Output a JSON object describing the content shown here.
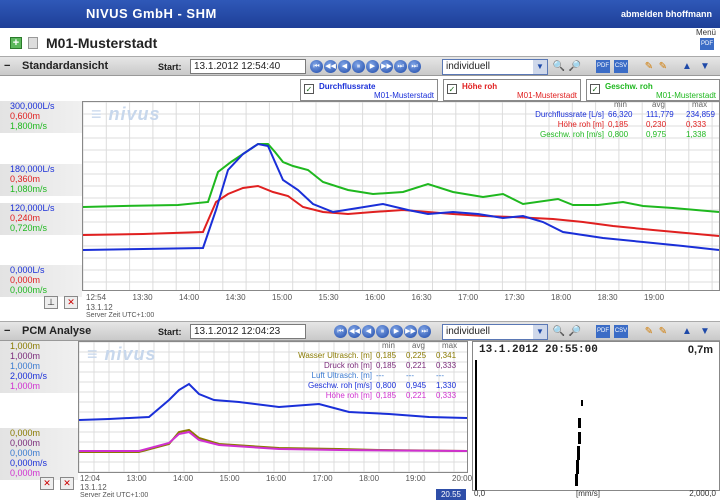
{
  "header": {
    "brand": "NIVUS GmbH - SHM",
    "user": "abmelden bhoffmann",
    "menu": "Menü"
  },
  "page": {
    "title": "M01-Musterstadt"
  },
  "upper": {
    "section_title": "Standardansicht",
    "start_label": "Start:",
    "start_value": "13.1.2012 12:54:40",
    "mode": "individuell",
    "legends": [
      {
        "name": "Durchflussrate",
        "site": "M01-Musterstadt",
        "color": "#1a2fd8"
      },
      {
        "name": "Höhe roh",
        "site": "M01-Musterstadt",
        "color": "#e02020"
      },
      {
        "name": "Geschw. roh",
        "site": "M01-Musterstadt",
        "color": "#1fb81f"
      }
    ],
    "y_labels": [
      [
        "300,000L/s",
        "0,600m",
        "1,800m/s"
      ],
      [
        "180,000L/s",
        "0,360m",
        "1,080m/s"
      ],
      [
        "120,000L/s",
        "0,240m",
        "0,720m/s"
      ],
      [
        "0,000L/s",
        "0,000m",
        "0,000m/s"
      ]
    ],
    "stats_header": [
      "min",
      "avg",
      "max"
    ],
    "stats": [
      {
        "label": "Durchflussrate [L/s]",
        "min": "66,320",
        "avg": "111,779",
        "max": "234,859",
        "color": "#1a2fd8"
      },
      {
        "label": "Höhe roh [m]",
        "min": "0,185",
        "avg": "0,230",
        "max": "0,333",
        "color": "#e02020"
      },
      {
        "label": "Geschw. roh [m/s]",
        "min": "0,800",
        "avg": "0,975",
        "max": "1,338",
        "color": "#1fb81f"
      }
    ],
    "x_ticks": [
      "12:54",
      "13:30",
      "14:00",
      "14:30",
      "15:00",
      "15:30",
      "16:00",
      "16:30",
      "17:00",
      "17:30",
      "18:00",
      "18:30",
      "19:00"
    ],
    "x_date": "13.1.12",
    "server_time": "Server Zeit UTC+1:00"
  },
  "lower": {
    "section_title": "PCM Analyse",
    "start_label": "Start:",
    "start_value": "13.1.2012 12:04:23",
    "mode": "individuell",
    "y_labels_top": [
      {
        "text": "1,000m",
        "color": "#8a7a00"
      },
      {
        "text": "1,000m",
        "color": "#7a2a7a"
      },
      {
        "text": "1,000m",
        "color": "#3a7ad0"
      },
      {
        "text": "2,000m/s",
        "color": "#1a2fd8"
      },
      {
        "text": "1,000m",
        "color": "#d030d0"
      }
    ],
    "y_labels_bottom": [
      {
        "text": "0,000m",
        "color": "#8a7a00"
      },
      {
        "text": "0,000m",
        "color": "#7a2a7a"
      },
      {
        "text": "0,000m",
        "color": "#3a7ad0"
      },
      {
        "text": "0,000m/s",
        "color": "#1a2fd8"
      },
      {
        "text": "0,000m",
        "color": "#d030d0"
      }
    ],
    "stats_header": [
      "min",
      "avg",
      "max"
    ],
    "stats": [
      {
        "label": "Wasser Ultrasch. [m]",
        "min": "0,185",
        "avg": "0,225",
        "max": "0,341",
        "color": "#8a7a00"
      },
      {
        "label": "Druck roh [m]",
        "min": "0,185",
        "avg": "0,221",
        "max": "0,333",
        "color": "#7a2a7a"
      },
      {
        "label": "Luft Ultrasch. [m]",
        "min": "---",
        "avg": "---",
        "max": "---",
        "color": "#3a7ad0"
      },
      {
        "label": "Geschw. roh [m/s]",
        "min": "0,800",
        "avg": "0,945",
        "max": "1,330",
        "color": "#1a2fd8"
      },
      {
        "label": "Höhe roh [m]",
        "min": "0,185",
        "avg": "0,221",
        "max": "0,333",
        "color": "#d030d0"
      }
    ],
    "x_ticks": [
      "12:04",
      "13:00",
      "14:00",
      "15:00",
      "16:00",
      "17:00",
      "18:00",
      "19:00",
      "20:00"
    ],
    "x_date": "13.1.12",
    "server_time": "Server Zeit UTC+1:00",
    "badge": "20.55",
    "detail": {
      "timestamp": "13.1.2012 20:55:00",
      "value": "0,7m",
      "axis_min": "0,0",
      "axis_unit": "[mm/s]",
      "axis_max": "2,000,0"
    }
  }
}
